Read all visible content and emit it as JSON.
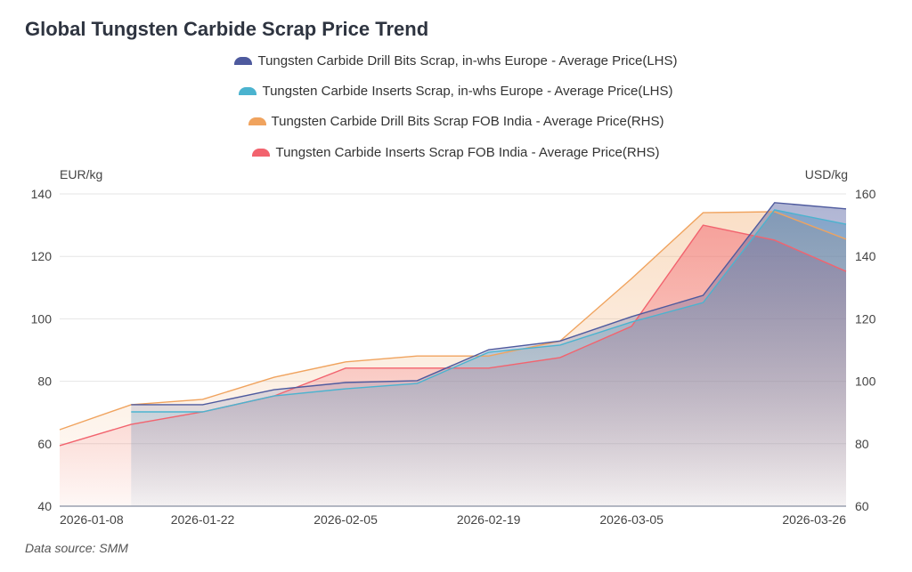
{
  "title": "Global Tungsten Carbide Scrap Price Trend",
  "data_source": "Data source:  SMM",
  "chart_data": {
    "type": "area",
    "title": "Global Tungsten Carbide Scrap Price Trend",
    "x": [
      "2026-01-08",
      "2026-01-15",
      "2026-01-22",
      "2026-01-29",
      "2026-02-05",
      "2026-02-12",
      "2026-02-19",
      "2026-02-26",
      "2026-03-05",
      "2026-03-12",
      "2026-03-19",
      "2026-03-26"
    ],
    "x_tick_labels": [
      "2026-01-08",
      "2026-01-22",
      "2026-02-05",
      "2026-02-19",
      "2026-03-05",
      "2026-03-26"
    ],
    "ylabel_left": "EUR/kg",
    "ylabel_right": "USD/kg",
    "ylim_left": [
      40,
      140
    ],
    "ylim_right": [
      60,
      160
    ],
    "yticks_left": [
      40,
      60,
      80,
      100,
      120,
      140
    ],
    "yticks_right": [
      60,
      80,
      100,
      120,
      140,
      160
    ],
    "grid": true,
    "legend_position": "top-center",
    "series": [
      {
        "name": "Tungsten Carbide Drill Bits Scrap, in-whs Europe - Average Price(LHS)",
        "axis": "left",
        "color": "#4e5a9e",
        "values": [
          null,
          72.5,
          72.5,
          77.3,
          79.6,
          80.2,
          90.1,
          92.9,
          100.7,
          107.5,
          137.2,
          135.2
        ]
      },
      {
        "name": "Tungsten Carbide Inserts Scrap, in-whs Europe - Average Price(LHS)",
        "axis": "left",
        "color": "#4bb3cf",
        "values": [
          null,
          70.2,
          70.2,
          75.3,
          77.6,
          79.3,
          89.3,
          91.6,
          99.0,
          105.2,
          134.9,
          130.3
        ]
      },
      {
        "name": "Tungsten Carbide Drill Bits Scrap FOB India - Average Price(RHS)",
        "axis": "right",
        "color": "#f0a35e",
        "values": [
          84.5,
          92.5,
          94.2,
          101.3,
          106.2,
          108.1,
          108.1,
          112.9,
          132.9,
          154.0,
          154.3,
          145.5
        ]
      },
      {
        "name": "Tungsten Carbide Inserts Scrap FOB India - Average Price(RHS)",
        "axis": "right",
        "color": "#f2636e",
        "values": [
          79.4,
          86.2,
          90.2,
          95.3,
          104.2,
          104.2,
          104.2,
          107.6,
          117.6,
          150.0,
          145.2,
          135.2
        ]
      }
    ]
  }
}
